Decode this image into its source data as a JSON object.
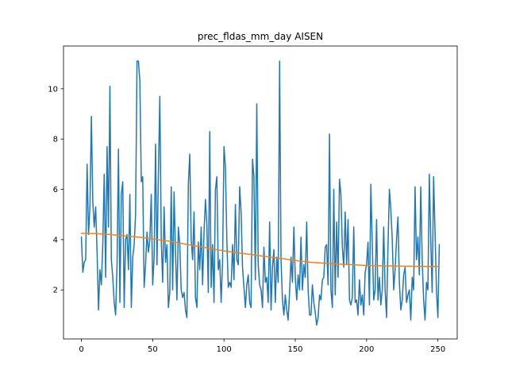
{
  "chart_data": {
    "type": "line",
    "title": "prec_fldas_mm_day AISEN",
    "x": [
      0,
      1,
      2,
      3,
      4,
      5,
      6,
      7,
      8,
      9,
      10,
      11,
      12,
      13,
      14,
      15,
      16,
      17,
      18,
      19,
      20,
      21,
      22,
      23,
      24,
      25,
      26,
      27,
      28,
      29,
      30,
      31,
      32,
      33,
      34,
      35,
      36,
      37,
      38,
      39,
      40,
      41,
      42,
      43,
      44,
      45,
      46,
      47,
      48,
      49,
      50,
      51,
      52,
      53,
      54,
      55,
      56,
      57,
      58,
      59,
      60,
      61,
      62,
      63,
      64,
      65,
      66,
      67,
      68,
      69,
      70,
      71,
      72,
      73,
      74,
      75,
      76,
      77,
      78,
      79,
      80,
      81,
      82,
      83,
      84,
      85,
      86,
      87,
      88,
      89,
      90,
      91,
      92,
      93,
      94,
      95,
      96,
      97,
      98,
      99,
      100,
      101,
      102,
      103,
      104,
      105,
      106,
      107,
      108,
      109,
      110,
      111,
      112,
      113,
      114,
      115,
      116,
      117,
      118,
      119,
      120,
      121,
      122,
      123,
      124,
      125,
      126,
      127,
      128,
      129,
      130,
      131,
      132,
      133,
      134,
      135,
      136,
      137,
      138,
      139,
      140,
      141,
      142,
      143,
      144,
      145,
      146,
      147,
      148,
      149,
      150,
      151,
      152,
      153,
      154,
      155,
      156,
      157,
      158,
      159,
      160,
      161,
      162,
      163,
      164,
      165,
      166,
      167,
      168,
      169,
      170,
      171,
      172,
      173,
      174,
      175,
      176,
      177,
      178,
      179,
      180,
      181,
      182,
      183,
      184,
      185,
      186,
      187,
      188,
      189,
      190,
      191,
      192,
      193,
      194,
      195,
      196,
      197,
      198,
      199,
      200,
      201,
      202,
      203,
      204,
      205,
      206,
      207,
      208,
      209,
      210,
      211,
      212,
      213,
      214,
      215,
      216,
      217,
      218,
      219,
      220,
      221,
      222,
      223,
      224,
      225,
      226,
      227,
      228,
      229,
      230,
      231,
      232,
      233,
      234,
      235,
      236,
      237,
      238,
      239,
      240,
      241,
      242,
      243,
      244,
      245,
      246,
      247,
      248,
      249,
      250,
      251
    ],
    "series": [
      {
        "color": "#1f77b4",
        "values": [
          4.1,
          2.7,
          3.1,
          3.2,
          7.0,
          4.2,
          5.3,
          8.9,
          5.5,
          4.5,
          5.3,
          3.5,
          1.2,
          2.8,
          2.2,
          3.8,
          6.6,
          2.5,
          7.7,
          4.5,
          10.1,
          3.2,
          2.5,
          1.5,
          1.0,
          3.0,
          7.6,
          1.5,
          5.8,
          6.3,
          1.3,
          4.0,
          4.2,
          2.8,
          5.8,
          1.3,
          3.3,
          3.8,
          5.0,
          11.1,
          11.1,
          10.3,
          6.3,
          6.5,
          2.1,
          3.0,
          4.3,
          3.5,
          4.0,
          5.8,
          2.2,
          3.3,
          7.8,
          3.0,
          6.6,
          9.7,
          4.0,
          2.3,
          5.3,
          3.1,
          3.8,
          1.3,
          1.9,
          6.1,
          2.0,
          5.9,
          3.5,
          1.6,
          4.5,
          3.8,
          2.0,
          1.7,
          1.9,
          1.2,
          0.9,
          6.2,
          7.4,
          4.0,
          3.2,
          5.1,
          1.7,
          1.3,
          3.9,
          2.8,
          4.5,
          2.2,
          4.3,
          5.6,
          4.6,
          1.9,
          8.3,
          2.1,
          3.8,
          1.5,
          6.0,
          6.5,
          2.8,
          3.2,
          1.5,
          3.1,
          7.7,
          6.9,
          4.0,
          2.1,
          2.3,
          2.1,
          3.8,
          2.4,
          5.4,
          3.2,
          3.0,
          6.1,
          5.1,
          2.9,
          2.1,
          1.3,
          2.2,
          2.6,
          1.5,
          1.3,
          7.2,
          6.5,
          2.4,
          9.4,
          3.0,
          2.2,
          2.0,
          1.3,
          3.7,
          2.3,
          2.5,
          1.5,
          4.7,
          1.2,
          2.9,
          3.6,
          1.5,
          3.3,
          2.3,
          11.1,
          3.2,
          1.6,
          1.0,
          1.8,
          1.2,
          0.8,
          1.9,
          3.3,
          2.3,
          4.5,
          2.5,
          1.6,
          2.6,
          2.0,
          4.1,
          2.0,
          3.0,
          2.5,
          4.7,
          2.0,
          1.0,
          1.0,
          2.2,
          1.5,
          1.1,
          0.6,
          0.9,
          1.8,
          1.6,
          2.4,
          2.5,
          3.7,
          3.8,
          2.2,
          8.2,
          2.0,
          1.3,
          6.0,
          1.8,
          4.7,
          2.5,
          6.4,
          5.8,
          3.7,
          2.9,
          5.1,
          3.0,
          4.8,
          1.6,
          1.4,
          1.7,
          4.5,
          1.5,
          1.6,
          1.0,
          2.4,
          1.4,
          1.8,
          1.0,
          2.7,
          3.0,
          3.9,
          1.4,
          6.2,
          3.8,
          1.6,
          2.0,
          4.8,
          1.6,
          2.5,
          1.4,
          2.0,
          4.5,
          2.0,
          0.9,
          3.7,
          6.0,
          5.2,
          4.0,
          2.0,
          2.8,
          4.0,
          4.9,
          2.3,
          1.2,
          1.6,
          2.6,
          2.9,
          1.5,
          1.8,
          2.0,
          0.8,
          2.5,
          2.0,
          6.1,
          3.2,
          4.1,
          2.6,
          6.1,
          3.2,
          1.6,
          0.8,
          2.3,
          2.0,
          6.6,
          4.0,
          1.9,
          6.5,
          4.3,
          2.0,
          0.9,
          3.8
        ]
      },
      {
        "color": "#ff7f0e",
        "x": [
          0,
          10,
          20,
          30,
          40,
          50,
          60,
          70,
          80,
          90,
          100,
          110,
          120,
          130,
          140,
          150,
          160,
          170,
          180,
          190,
          200,
          210,
          220,
          230,
          240,
          250,
          251
        ],
        "values": [
          4.25,
          4.24,
          4.2,
          4.15,
          4.1,
          4.03,
          3.95,
          3.85,
          3.75,
          3.65,
          3.55,
          3.47,
          3.4,
          3.32,
          3.25,
          3.17,
          3.1,
          3.06,
          3.03,
          3.0,
          2.97,
          2.96,
          2.95,
          2.94,
          2.93,
          2.93,
          2.93
        ]
      }
    ],
    "xlim": [
      -12.55,
      263.55
    ],
    "ylim": [
      0.05,
      11.7
    ],
    "xticks": [
      0,
      50,
      100,
      150,
      200,
      250
    ],
    "yticks": [
      2,
      4,
      6,
      8,
      10
    ]
  }
}
